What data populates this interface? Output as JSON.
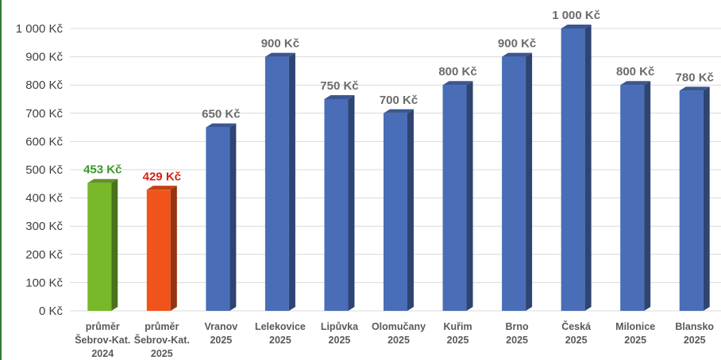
{
  "chart_data": {
    "type": "bar",
    "style": "3d-column",
    "title": "",
    "xlabel": "",
    "ylabel": "",
    "ylim": [
      0,
      1000
    ],
    "y_tick_values": [
      0,
      100,
      200,
      300,
      400,
      500,
      600,
      700,
      800,
      900,
      1000
    ],
    "y_tick_labels": [
      "0 Kč",
      "100 Kč",
      "200 Kč",
      "300 Kč",
      "400 Kč",
      "500 Kč",
      "600 Kč",
      "700 Kč",
      "800 Kč",
      "900 Kč",
      "1 000 Kč"
    ],
    "grid": true,
    "legend": "none",
    "categories": [
      [
        "průměr",
        "Šebrov-Kat.",
        "2024"
      ],
      [
        "průměr",
        "Šebrov-Kat.",
        "2025"
      ],
      [
        "Vranov",
        "2025"
      ],
      [
        "Lelekovice",
        "2025"
      ],
      [
        "Lipůvka",
        "2025"
      ],
      [
        "Olomučany",
        "2025"
      ],
      [
        "Kuřim",
        "2025"
      ],
      [
        "Brno",
        "2025"
      ],
      [
        "Česká",
        "2025"
      ],
      [
        "Milonice",
        "2025"
      ],
      [
        "Blansko",
        "2025"
      ]
    ],
    "values": [
      453,
      429,
      650,
      900,
      750,
      700,
      800,
      900,
      1000,
      800,
      780
    ],
    "data_labels": [
      "453 Kč",
      "429 Kč",
      "650 Kč",
      "900 Kč",
      "750 Kč",
      "700 Kč",
      "800 Kč",
      "900 Kč",
      "1 000 Kč",
      "800 Kč",
      "780 Kč"
    ],
    "colors": [
      "#78b82a",
      "#f0541c",
      "#4a6db8",
      "#4a6db8",
      "#4a6db8",
      "#4a6db8",
      "#4a6db8",
      "#4a6db8",
      "#4a6db8",
      "#4a6db8",
      "#4a6db8"
    ],
    "label_colors": [
      "#3a9a2a",
      "#d81e10",
      "#6b6b6b",
      "#6b6b6b",
      "#6b6b6b",
      "#6b6b6b",
      "#6b6b6b",
      "#6b6b6b",
      "#6b6b6b",
      "#6b6b6b",
      "#6b6b6b"
    ]
  }
}
